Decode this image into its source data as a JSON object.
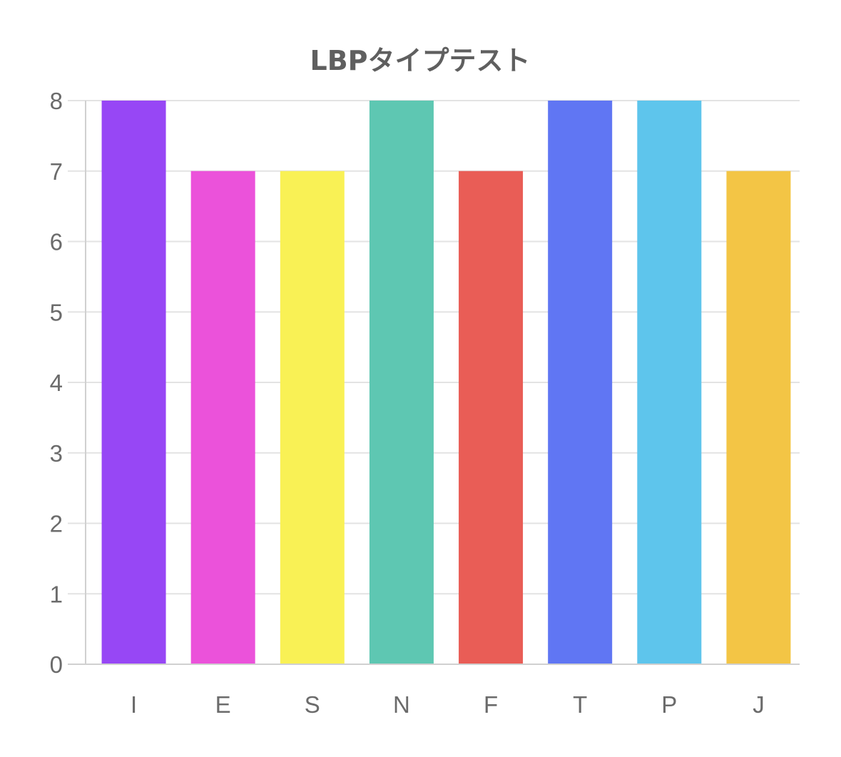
{
  "chart_data": {
    "type": "bar",
    "title": "LBPタイプテスト",
    "xlabel": "",
    "ylabel": "",
    "categories": [
      "I",
      "E",
      "S",
      "N",
      "F",
      "T",
      "P",
      "J"
    ],
    "values": [
      8,
      7,
      7,
      8,
      7,
      8,
      8,
      7
    ],
    "colors": [
      "#9747f5",
      "#eb52da",
      "#f9f155",
      "#5ec7b2",
      "#e95d56",
      "#6076f3",
      "#5ec5ec",
      "#f3c545"
    ],
    "ylim": [
      0,
      8
    ],
    "yticks": [
      "0",
      "1",
      "2",
      "3",
      "4",
      "5",
      "6",
      "7",
      "8"
    ],
    "grid": true,
    "legend": "none"
  }
}
